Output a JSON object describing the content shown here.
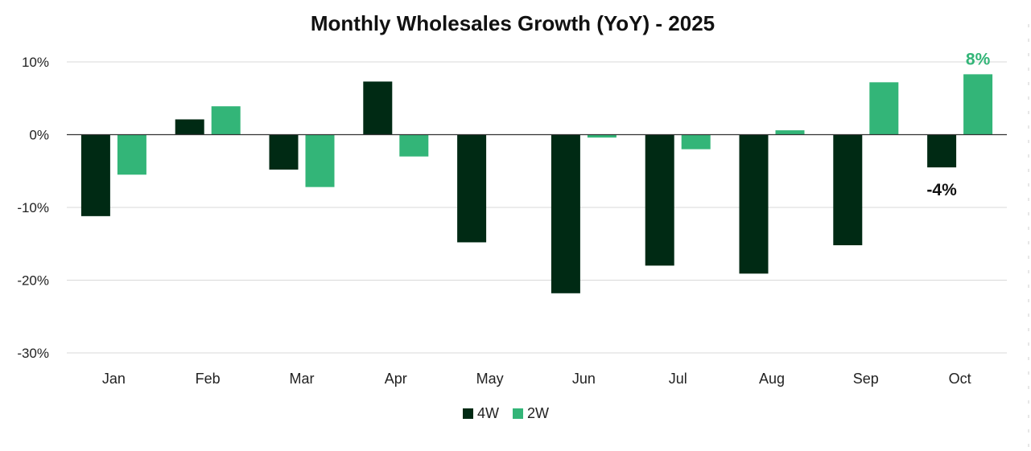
{
  "chart_data": {
    "type": "bar",
    "title": "Monthly Wholesales Growth (YoY) - 2025",
    "categories": [
      "Jan",
      "Feb",
      "Mar",
      "Apr",
      "May",
      "Jun",
      "Jul",
      "Aug",
      "Sep",
      "Oct"
    ],
    "series": [
      {
        "name": "4W",
        "color": "#002a14",
        "values": [
          -11.2,
          2.1,
          -4.8,
          7.3,
          -14.8,
          -21.8,
          -18.0,
          -19.1,
          -15.2,
          -4.5
        ]
      },
      {
        "name": "2W",
        "color": "#33b578",
        "values": [
          -5.5,
          3.9,
          -7.2,
          -3.0,
          0.0,
          -0.4,
          -2.0,
          0.6,
          7.2,
          8.3
        ]
      }
    ],
    "ylim": [
      -30,
      10
    ],
    "yticks": [
      10,
      0,
      -10,
      -20,
      -30
    ],
    "ytick_labels": [
      "10%",
      "0%",
      "-10%",
      "-20%",
      "-30%"
    ],
    "grid": true,
    "legend_position": "bottom-center",
    "annotations": [
      {
        "text": "8%",
        "series": "2W",
        "category": "Oct",
        "color": "#33b578"
      },
      {
        "text": "-4%",
        "series": "4W",
        "category": "Oct",
        "color": "#111111"
      }
    ]
  }
}
